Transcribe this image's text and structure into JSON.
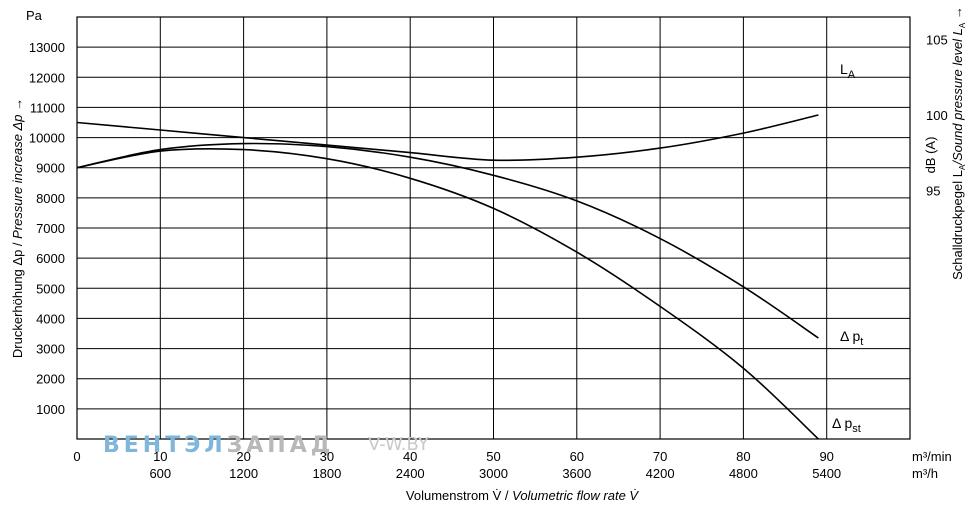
{
  "chart_data": {
    "type": "line",
    "y_unit": "Pa",
    "ylabel": "Druckerhöhung Δp / Pressure increase  Δp →",
    "ylabel_de": "Druckerhöhung Δp / ",
    "ylabel_en": "Pressure increase  Δp →",
    "y2label_de": "Schalldruckpegel L",
    "y2label_sub": "A",
    "y2label_en": "/Sound pressure level L",
    "y2label_arrow": " →",
    "y2_unit": "dB (A)",
    "xlabel_de": "Volumenstrom V̇ / ",
    "xlabel_en": "Volumetric flow rate V̇",
    "x_unit_min": "m³/min",
    "x_unit_h": "m³/h",
    "xlim": [
      0,
      100
    ],
    "ylim": [
      0,
      14000
    ],
    "y2lim": [
      78.5,
      106.5
    ],
    "x_ticks": [
      0,
      10,
      20,
      30,
      40,
      50,
      60,
      70,
      80,
      90
    ],
    "x_ticks_h": [
      600,
      1200,
      1800,
      2400,
      3000,
      3600,
      4200,
      4800,
      5400
    ],
    "y_ticks": [
      1000,
      2000,
      3000,
      4000,
      5000,
      6000,
      7000,
      8000,
      9000,
      10000,
      11000,
      12000,
      13000
    ],
    "y2_ticks": [
      95,
      100,
      105
    ],
    "grid": true,
    "series": [
      {
        "name": "L",
        "name_sub": "A",
        "axis": "right",
        "x": [
          0,
          10,
          20,
          30,
          40,
          50,
          60,
          70,
          80,
          89
        ],
        "y": [
          99.5,
          99.0,
          98.5,
          98.0,
          97.5,
          97.0,
          97.2,
          97.8,
          98.8,
          100.0
        ]
      },
      {
        "name": "Δ p",
        "name_sub": "t",
        "axis": "left",
        "x": [
          0,
          10,
          20,
          30,
          40,
          50,
          60,
          70,
          80,
          89
        ],
        "y": [
          9000,
          9600,
          9800,
          9700,
          9350,
          8750,
          7900,
          6650,
          5050,
          3350
        ]
      },
      {
        "name": "Δ p",
        "name_sub": "st",
        "axis": "left",
        "x": [
          0,
          10,
          20,
          30,
          40,
          50,
          60,
          70,
          80,
          89
        ],
        "y": [
          9000,
          9550,
          9600,
          9300,
          8650,
          7650,
          6200,
          4400,
          2350,
          0
        ]
      }
    ]
  },
  "watermark": {
    "blue": "ВЕНТЭЛ",
    "grey": "ЗАПАД",
    "url_blue": "V",
    "url_grey": "-W.BY"
  }
}
